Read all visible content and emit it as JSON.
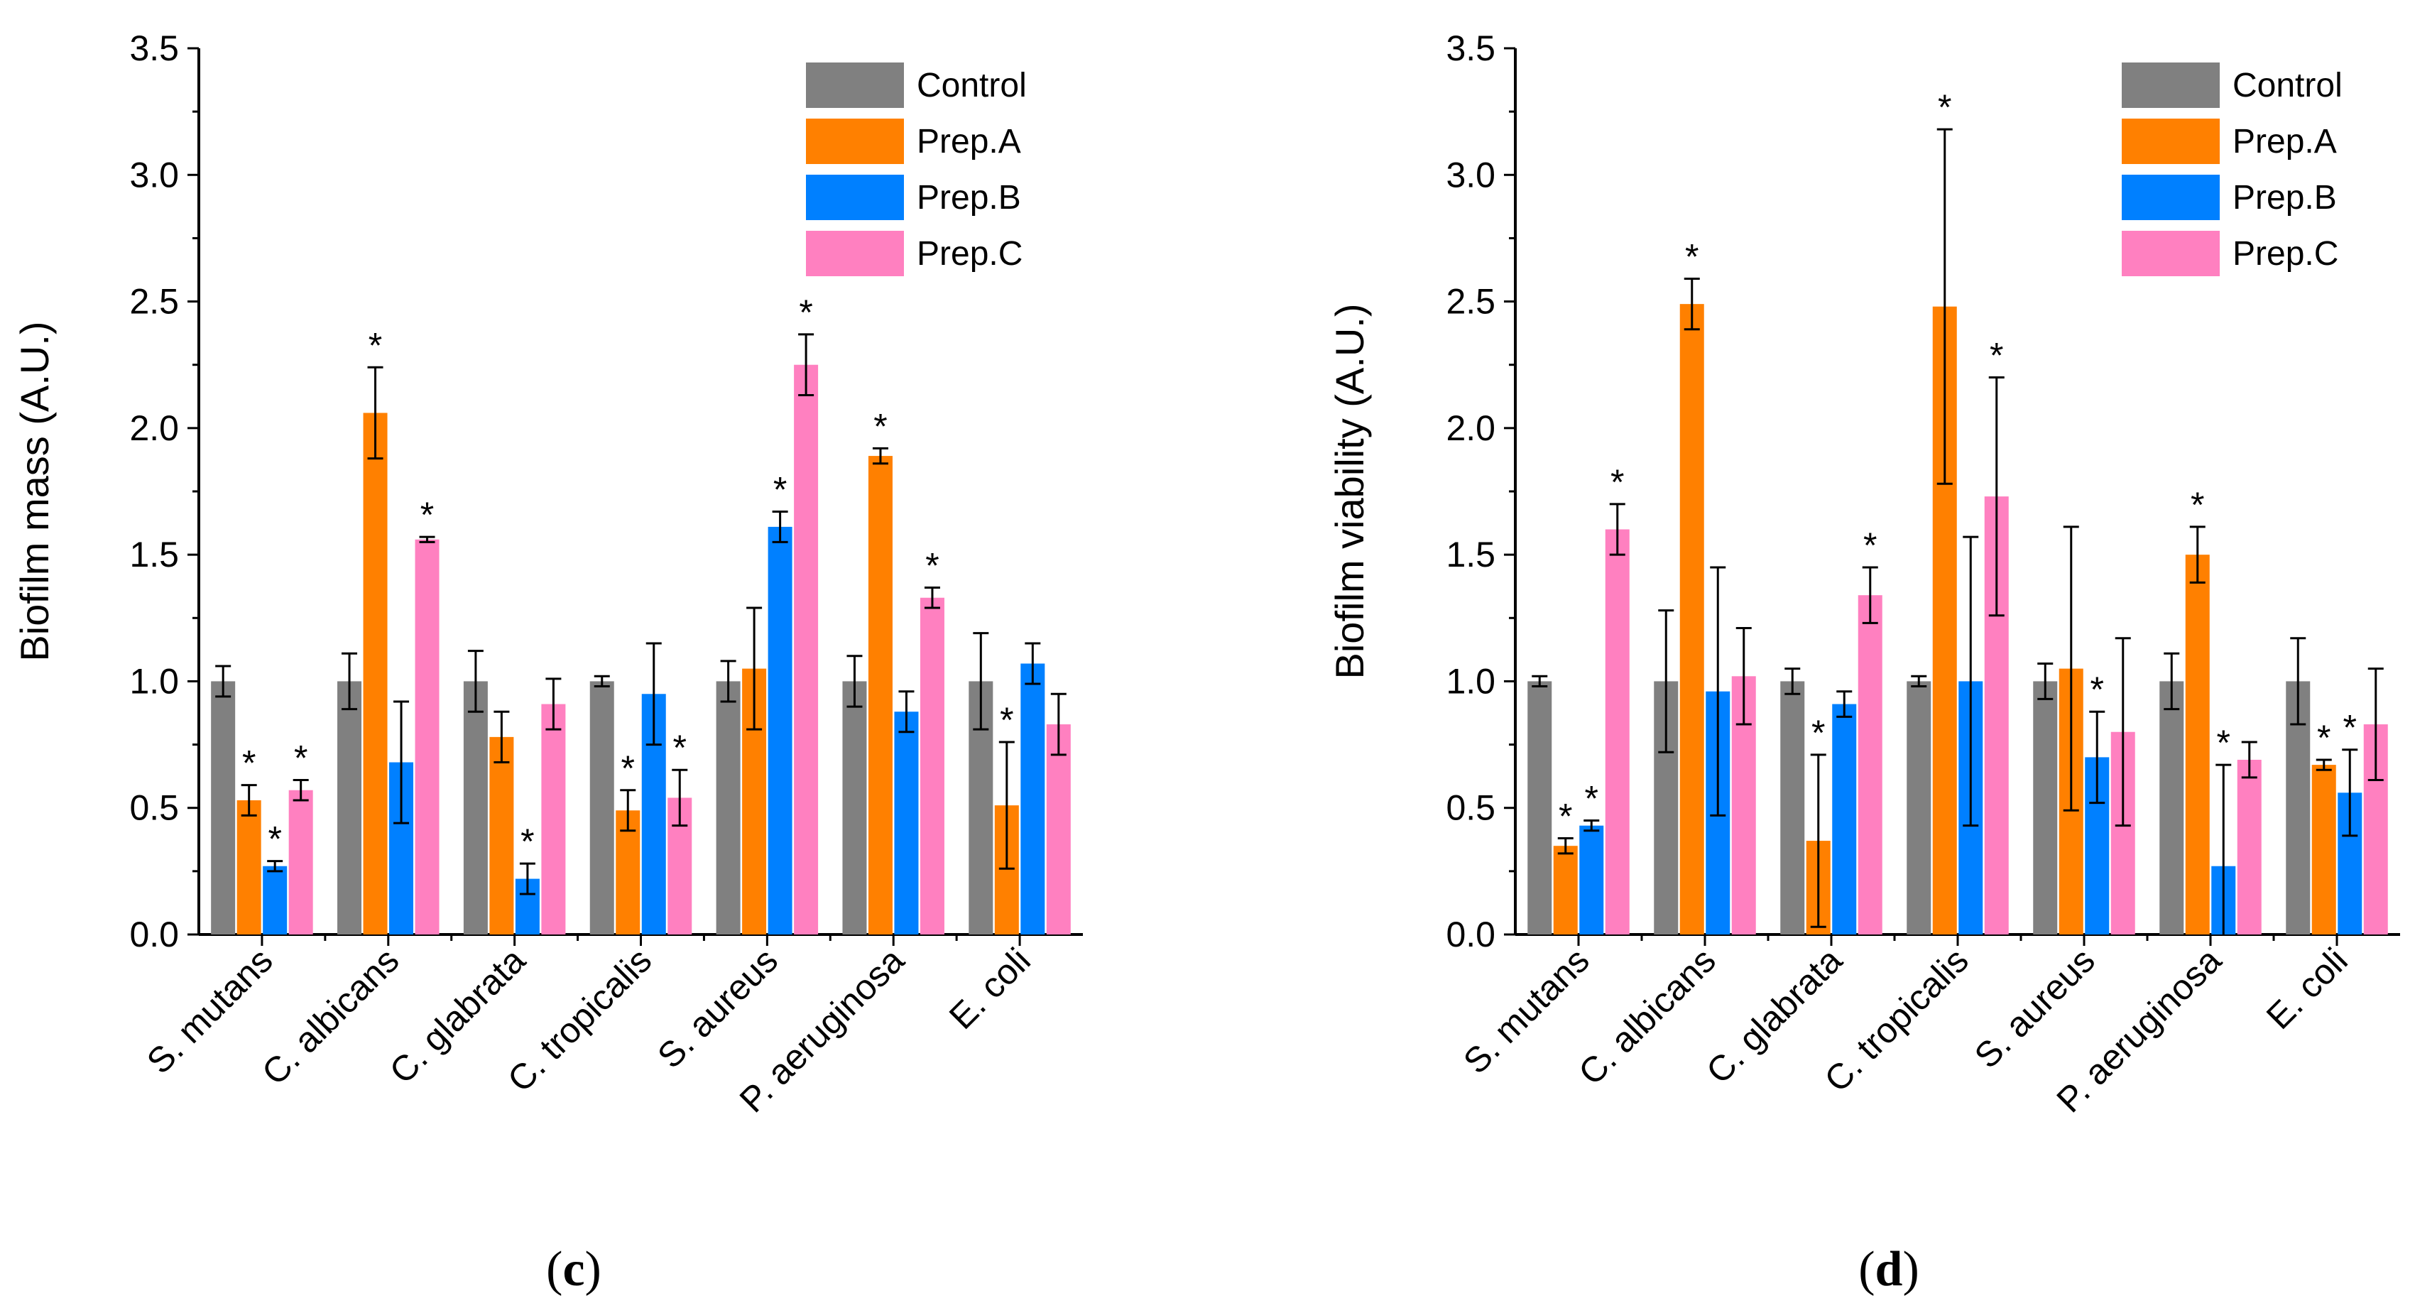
{
  "chart_data": [
    {
      "type": "bar",
      "panel_label": "c",
      "title": "",
      "xlabel": "",
      "ylabel": "Biofilm mass (A.U.)",
      "ylim": [
        0,
        3.5
      ],
      "yticks": [
        "0.0",
        "0.5",
        "1.0",
        "1.5",
        "2.0",
        "2.5",
        "3.0",
        "3.5"
      ],
      "legend_position": "top-right",
      "categories": [
        "S. mutans",
        "C. albicans",
        "C. glabrata",
        "C. tropicalis",
        "S. aureus",
        "P. aeruginosa",
        "E. coli"
      ],
      "series": [
        {
          "name": "Control",
          "color": "#808080",
          "values": [
            1.0,
            1.0,
            1.0,
            1.0,
            1.0,
            1.0,
            1.0
          ],
          "errors": [
            0.06,
            0.11,
            0.12,
            0.02,
            0.08,
            0.1,
            0.19
          ],
          "signif": [
            false,
            false,
            false,
            false,
            false,
            false,
            false
          ]
        },
        {
          "name": "Prep.A",
          "color": "#ff8000",
          "values": [
            0.53,
            2.06,
            0.78,
            0.49,
            1.05,
            1.89,
            0.51
          ],
          "errors": [
            0.06,
            0.18,
            0.1,
            0.08,
            0.24,
            0.03,
            0.25
          ],
          "signif": [
            true,
            true,
            false,
            true,
            false,
            true,
            true
          ]
        },
        {
          "name": "Prep.B",
          "color": "#0080ff",
          "values": [
            0.27,
            0.68,
            0.22,
            0.95,
            1.61,
            0.88,
            1.07
          ],
          "errors": [
            0.02,
            0.24,
            0.06,
            0.2,
            0.06,
            0.08,
            0.08
          ],
          "signif": [
            true,
            false,
            true,
            false,
            true,
            false,
            false
          ]
        },
        {
          "name": "Prep.C",
          "color": "#ff80c0",
          "values": [
            0.57,
            1.56,
            0.91,
            0.54,
            2.25,
            1.33,
            0.83
          ],
          "errors": [
            0.04,
            0.01,
            0.1,
            0.11,
            0.12,
            0.04,
            0.12
          ],
          "signif": [
            true,
            true,
            false,
            true,
            true,
            true,
            false
          ]
        }
      ]
    },
    {
      "type": "bar",
      "panel_label": "d",
      "title": "",
      "xlabel": "",
      "ylabel": "Biofilm viability (A.U.)",
      "ylim": [
        0,
        3.5
      ],
      "yticks": [
        "0.0",
        "0.5",
        "1.0",
        "1.5",
        "2.0",
        "2.5",
        "3.0",
        "3.5"
      ],
      "legend_position": "top-right",
      "categories": [
        "S. mutans",
        "C. albicans",
        "C. glabrata",
        "C. tropicalis",
        "S. aureus",
        "P. aeruginosa",
        "E. coli"
      ],
      "series": [
        {
          "name": "Control",
          "color": "#808080",
          "values": [
            1.0,
            1.0,
            1.0,
            1.0,
            1.0,
            1.0,
            1.0
          ],
          "errors": [
            0.02,
            0.28,
            0.05,
            0.02,
            0.07,
            0.11,
            0.17
          ],
          "signif": [
            false,
            false,
            false,
            false,
            false,
            false,
            false
          ]
        },
        {
          "name": "Prep.A",
          "color": "#ff8000",
          "values": [
            0.35,
            2.49,
            0.37,
            2.48,
            1.05,
            1.5,
            0.67
          ],
          "errors": [
            0.03,
            0.1,
            0.34,
            0.7,
            0.56,
            0.11,
            0.02
          ],
          "signif": [
            true,
            true,
            true,
            true,
            false,
            true,
            true
          ]
        },
        {
          "name": "Prep.B",
          "color": "#0080ff",
          "values": [
            0.43,
            0.96,
            0.91,
            1.0,
            0.7,
            0.27,
            0.56
          ],
          "errors": [
            0.02,
            0.49,
            0.05,
            0.57,
            0.18,
            0.4,
            0.17
          ],
          "signif": [
            true,
            false,
            false,
            false,
            true,
            true,
            true
          ]
        },
        {
          "name": "Prep.C",
          "color": "#ff80c0",
          "values": [
            1.6,
            1.02,
            1.34,
            1.73,
            0.8,
            0.69,
            0.83
          ],
          "errors": [
            0.1,
            0.19,
            0.11,
            0.47,
            0.37,
            0.07,
            0.22
          ],
          "signif": [
            true,
            false,
            true,
            true,
            false,
            false,
            false
          ]
        }
      ]
    }
  ]
}
